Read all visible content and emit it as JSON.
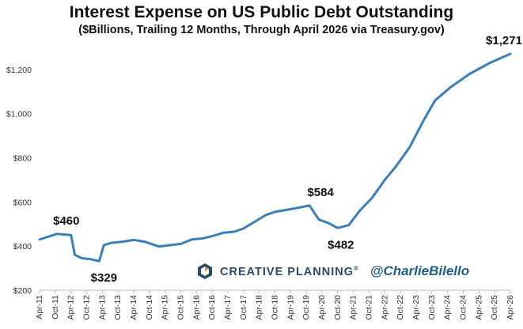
{
  "chart_data": {
    "type": "line",
    "title": "Interest Expense on US Public Debt Outstanding",
    "subtitle": "($Billions, Trailing 12 Months, Through April 2026 via Treasury.gov)",
    "xlabel": "",
    "ylabel": "",
    "ylim": [
      200,
      1300
    ],
    "y_ticks": [
      200,
      400,
      600,
      800,
      1000,
      1200
    ],
    "y_tick_labels": [
      "$200",
      "$400",
      "$600",
      "$800",
      "$1,000",
      "$1,200"
    ],
    "x_tick_labels": [
      "Apr-11",
      "Oct-11",
      "Apr-12",
      "Oct-12",
      "Apr-13",
      "Oct-13",
      "Apr-14",
      "Oct-14",
      "Apr-15",
      "Oct-15",
      "Apr-16",
      "Oct-16",
      "Apr-17",
      "Oct-17",
      "Apr-18",
      "Oct-18",
      "Apr-19",
      "Oct-19",
      "Apr-20",
      "Oct-20",
      "Apr-21",
      "Oct-21",
      "Apr-22",
      "Oct-22",
      "Apr-23",
      "Oct-23",
      "Apr-24",
      "Oct-24",
      "Apr-25",
      "Oct-25",
      "Apr-26"
    ],
    "grid": false,
    "line_color": "#3a7fb8",
    "series": [
      {
        "values": [
          430,
          455,
          450,
          360,
          345,
          340,
          332,
          405,
          415,
          420,
          428,
          420,
          398,
          405,
          410,
          430,
          435,
          445,
          460,
          465,
          480,
          510,
          540,
          555,
          565,
          575,
          584,
          520,
          505,
          482,
          495,
          560,
          620,
          700,
          760,
          850,
          960,
          1060,
          1120,
          1180,
          1230,
          1271
        ]
      }
    ],
    "x_index": [
      0,
      1.1,
      2,
      2.25,
      2.7,
      3.3,
      3.8,
      4.1,
      4.6,
      5.3,
      6,
      6.7,
      7.6,
      8.4,
      9,
      9.7,
      10.4,
      11,
      11.7,
      12.4,
      13,
      13.7,
      14.4,
      15,
      15.8,
      16.6,
      17.2,
      17.8,
      18.4,
      19,
      19.7,
      20.4,
      21.2,
      22,
      22.7,
      23.6,
      24.4,
      25.2,
      26.2,
      27.4,
      28.7,
      30
    ]
  },
  "annotations": [
    {
      "text": "$460",
      "ref": 1
    },
    {
      "text": "$329",
      "ref": 6
    },
    {
      "text": "$584",
      "ref": 26
    },
    {
      "text": "$482",
      "ref": 29
    },
    {
      "text": "$1,271",
      "ref": 41
    }
  ],
  "branding": {
    "company": "CREATIVE PLANNING",
    "registered": "®",
    "handle": "@CharlieBilello",
    "logo_icon": "creative-planning-logo-icon"
  }
}
